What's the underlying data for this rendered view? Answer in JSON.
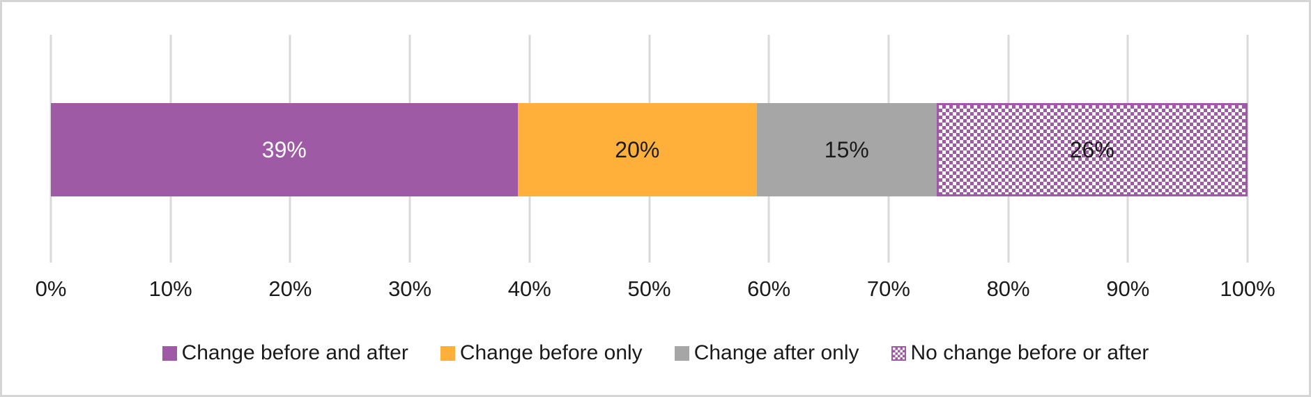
{
  "chart_data": {
    "type": "bar",
    "orientation": "horizontal",
    "stacked": true,
    "title": "",
    "grid": true,
    "legend_position": "bottom",
    "x_axis": {
      "min": 0,
      "max": 100,
      "tick_labels": [
        "0%",
        "10%",
        "20%",
        "30%",
        "40%",
        "50%",
        "60%",
        "70%",
        "80%",
        "90%",
        "100%"
      ]
    },
    "series": [
      {
        "name": "Change before and after",
        "value": 39,
        "data_label": "39%",
        "fill": "solid",
        "color": "#9F5AA5",
        "label_color": "#FFFFFF"
      },
      {
        "name": "Change before only",
        "value": 20,
        "data_label": "20%",
        "fill": "solid",
        "color": "#FFB03B",
        "label_color": "#1A1A1A"
      },
      {
        "name": "Change after only",
        "value": 15,
        "data_label": "15%",
        "fill": "solid",
        "color": "#A6A6A6",
        "label_color": "#1A1A1A"
      },
      {
        "name": "No change before or after",
        "value": 26,
        "data_label": "26%",
        "fill": "checker",
        "color": "#9F5AA5",
        "label_color": "#1A1A1A"
      }
    ]
  },
  "colors": {
    "gridline": "#D9D9D9",
    "frame_border": "#D5D5D5",
    "axis_text": "#1A1A1A",
    "background": "#FFFFFF"
  }
}
